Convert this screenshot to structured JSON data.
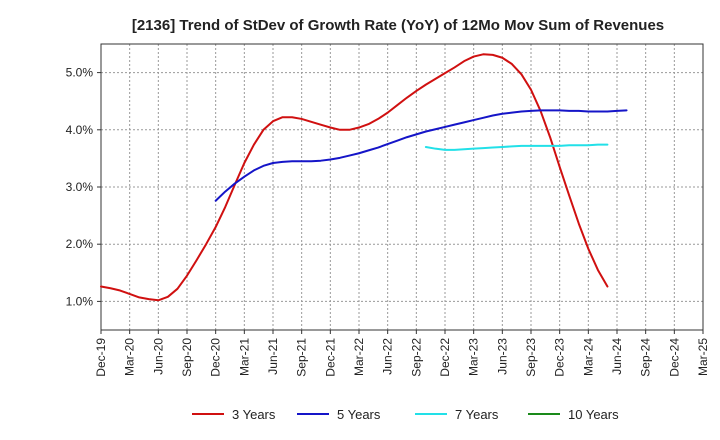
{
  "chart_data": {
    "type": "line",
    "title": "[2136]  Trend of StDev of Growth Rate (YoY) of 12Mo Mov Sum of Revenues",
    "xlabel": "",
    "ylabel": "",
    "ylim": [
      0.5,
      5.5
    ],
    "yticks": [
      1.0,
      2.0,
      3.0,
      4.0,
      5.0
    ],
    "ytick_labels": [
      "1.0%",
      "2.0%",
      "3.0%",
      "4.0%",
      "5.0%"
    ],
    "x_tick_labels": [
      "Dec-19",
      "Mar-20",
      "Jun-20",
      "Sep-20",
      "Dec-20",
      "Mar-21",
      "Jun-21",
      "Sep-21",
      "Dec-21",
      "Mar-22",
      "Jun-22",
      "Sep-22",
      "Dec-22",
      "Mar-23",
      "Jun-23",
      "Sep-23",
      "Dec-23",
      "Mar-24",
      "Jun-24",
      "Sep-24",
      "Dec-24",
      "Mar-25"
    ],
    "grid": true,
    "legend_position": "bottom",
    "series": [
      {
        "name": "3 Years",
        "color": "#d01010",
        "start_index": 0,
        "values": [
          1.26,
          1.23,
          1.19,
          1.13,
          1.07,
          1.04,
          1.02,
          1.08,
          1.22,
          1.45,
          1.72,
          2.0,
          2.3,
          2.65,
          3.04,
          3.42,
          3.74,
          4.0,
          4.15,
          4.22,
          4.22,
          4.19,
          4.14,
          4.09,
          4.04,
          4.0,
          4.0,
          4.04,
          4.1,
          4.19,
          4.3,
          4.43,
          4.56,
          4.68,
          4.79,
          4.89,
          4.99,
          5.09,
          5.2,
          5.28,
          5.32,
          5.31,
          5.26,
          5.15,
          4.97,
          4.7,
          4.33,
          3.87,
          3.35,
          2.85,
          2.36,
          1.92,
          1.55,
          1.26
        ]
      },
      {
        "name": "5 Years",
        "color": "#1515c8",
        "start_index": 12,
        "values": [
          2.76,
          2.92,
          3.06,
          3.18,
          3.29,
          3.37,
          3.42,
          3.44,
          3.45,
          3.45,
          3.45,
          3.46,
          3.48,
          3.51,
          3.55,
          3.59,
          3.64,
          3.69,
          3.75,
          3.81,
          3.87,
          3.92,
          3.97,
          4.01,
          4.05,
          4.09,
          4.13,
          4.17,
          4.21,
          4.25,
          4.28,
          4.3,
          4.32,
          4.33,
          4.34,
          4.34,
          4.34,
          4.33,
          4.33,
          4.32,
          4.32,
          4.32,
          4.33,
          4.34
        ]
      },
      {
        "name": "7 Years",
        "color": "#22e0e8",
        "start_index": 34,
        "values": [
          3.7,
          3.67,
          3.65,
          3.65,
          3.66,
          3.67,
          3.68,
          3.69,
          3.7,
          3.71,
          3.72,
          3.72,
          3.72,
          3.72,
          3.72,
          3.73,
          3.73,
          3.73,
          3.74,
          3.74
        ]
      },
      {
        "name": "10 Years",
        "color": "#1a8a1a",
        "start_index": 0,
        "values": []
      }
    ]
  }
}
